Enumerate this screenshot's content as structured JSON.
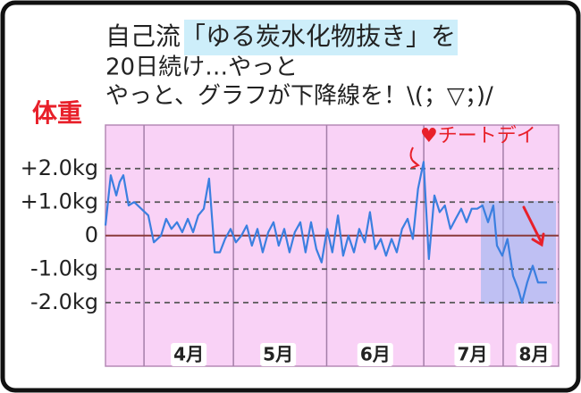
{
  "chart_data": {
    "type": "line",
    "title_lines": [
      "自己流「ゆる炭水化物抜き」を",
      "20日続け…やっと",
      "やっと、グラフが下降線を！\\(；▽；)/"
    ],
    "y_label": "体重",
    "annotation": "♥チートデイ",
    "xlim": [
      0,
      147
    ],
    "xticks": [
      {
        "value": 27,
        "label": "4月"
      },
      {
        "value": 56,
        "label": "5月"
      },
      {
        "value": 87.5,
        "label": "6月"
      },
      {
        "value": 119,
        "label": "7月"
      },
      {
        "value": 139,
        "label": "8月"
      }
    ],
    "ylim": [
      -3.9,
      3.3
    ],
    "yticks": [
      {
        "value": 2,
        "label": "+2.0kg"
      },
      {
        "value": 1,
        "label": "+1.0kg"
      },
      0,
      {
        "value": -1,
        "label": "-1.0kg"
      },
      {
        "value": -2,
        "label": "-2.0kg"
      }
    ],
    "grid": true,
    "x": [
      0,
      1.7,
      3.5,
      4.6,
      5.8,
      7.5,
      9.3,
      11.6,
      13.9,
      15.7,
      18,
      19.7,
      21.4,
      23.2,
      24.9,
      26.7,
      28.4,
      30.1,
      31.9,
      33.6,
      35.4,
      37.1,
      38.8,
      40.6,
      42.3,
      44.1,
      45.8,
      47.5,
      49.3,
      51,
      52.8,
      54.5,
      56.2,
      58,
      59.7,
      61.4,
      63.2,
      64.9,
      66.7,
      68.4,
      70.1,
      71.9,
      73.6,
      75.4,
      77.1,
      78.8,
      80.6,
      82.3,
      84.1,
      85.8,
      87.5,
      89.3,
      91,
      92.8,
      94.5,
      96.2,
      98,
      99.7,
      101.4,
      103.2,
      104.9,
      106.7,
      108.4,
      110.1,
      111.9,
      113.6,
      115.4,
      117.1,
      118.8,
      120.6,
      122.3,
      124.1,
      125.8,
      127,
      128.7,
      130.4,
      132.2,
      133.9,
      135.1,
      136.8,
      138.6,
      140.3,
      143.2
    ],
    "series": [
      {
        "color": "#3b7fe0",
        "values": [
          0.3,
          1.8,
          1.2,
          1.6,
          1.8,
          0.9,
          1.0,
          0.8,
          0.6,
          -0.2,
          0.0,
          0.5,
          0.2,
          0.4,
          0.1,
          0.5,
          0.1,
          0.6,
          0.8,
          1.7,
          -0.5,
          -0.5,
          -0.1,
          0.2,
          -0.2,
          0.0,
          0.3,
          -0.3,
          0.2,
          -0.5,
          0.1,
          0.4,
          -0.3,
          0.2,
          -0.5,
          0.1,
          0.4,
          -0.5,
          0.4,
          -0.4,
          -0.8,
          0.2,
          -0.5,
          0.6,
          -0.6,
          0.0,
          -0.5,
          0.2,
          -0.2,
          0.7,
          -0.4,
          -0.1,
          -0.6,
          -0.1,
          -0.5,
          0.2,
          0.5,
          -0.1,
          1.4,
          2.2,
          -0.7,
          1.2,
          0.7,
          0.9,
          0.2,
          0.5,
          0.8,
          0.4,
          0.8,
          0.8,
          0.9,
          0.4,
          0.9,
          -0.3,
          -0.6,
          -0.1,
          -1.2,
          -1.6,
          -2.0,
          -1.4,
          -0.9,
          -1.4,
          -1.4
        ]
      }
    ]
  }
}
